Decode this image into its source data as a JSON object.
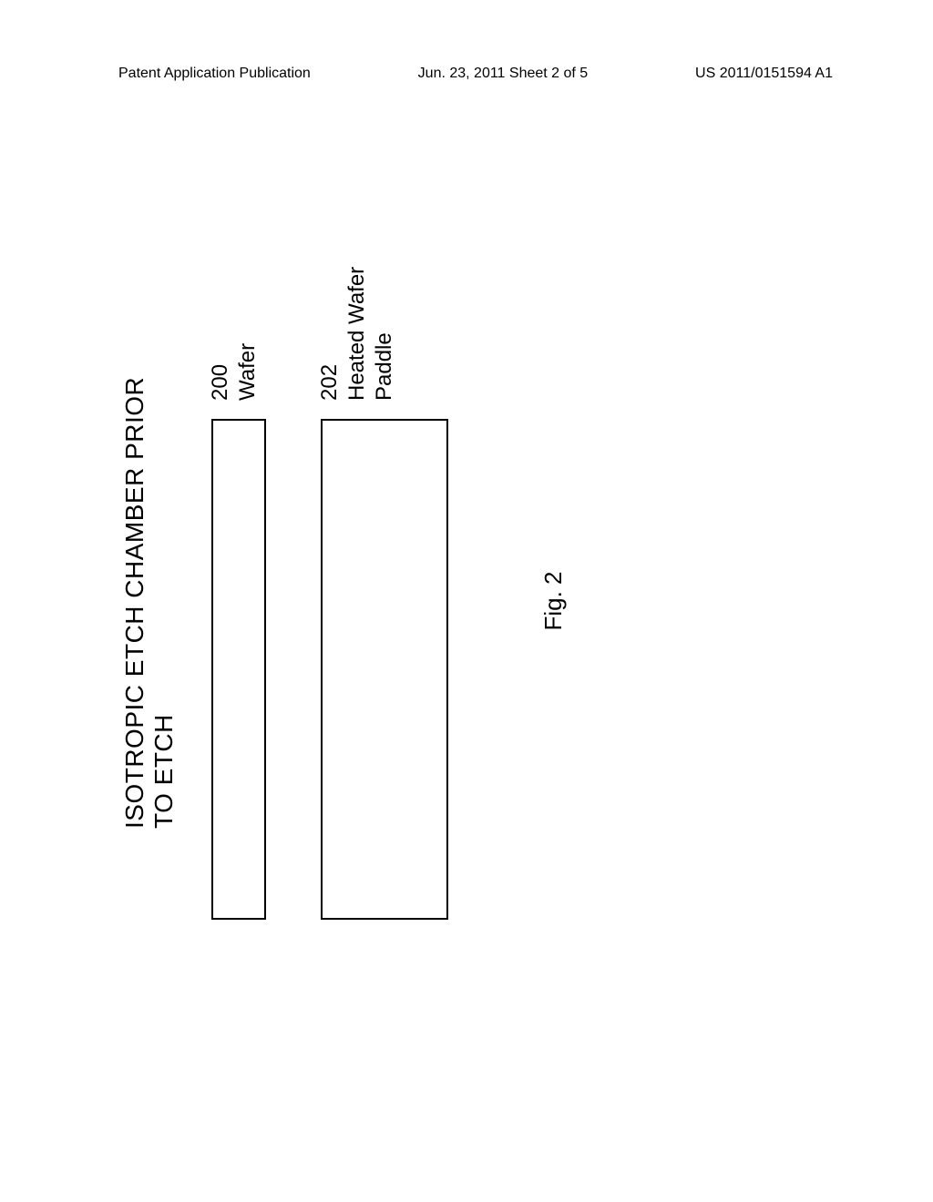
{
  "header": {
    "left": "Patent Application Publication",
    "center": "Jun. 23, 2011  Sheet 2 of 5",
    "right": "US 2011/0151594 A1"
  },
  "diagram": {
    "title": "ISOTROPIC ETCH CHAMBER PRIOR TO ETCH",
    "wafer": {
      "ref_num": "200",
      "label": "Wafer",
      "rect": {
        "border_color": "#000000",
        "border_width": 2,
        "fill": "transparent"
      }
    },
    "paddle": {
      "ref_num": "202",
      "label_line1": "Heated Wafer",
      "label_line2": "Paddle",
      "rect": {
        "border_color": "#000000",
        "border_width": 2,
        "fill": "transparent"
      }
    },
    "figure_label": "Fig. 2"
  },
  "colors": {
    "background": "#ffffff",
    "text": "#000000",
    "border": "#000000"
  },
  "typography": {
    "header_fontsize": 19,
    "title_fontsize": 28,
    "label_fontsize": 24,
    "figure_fontsize": 26
  }
}
